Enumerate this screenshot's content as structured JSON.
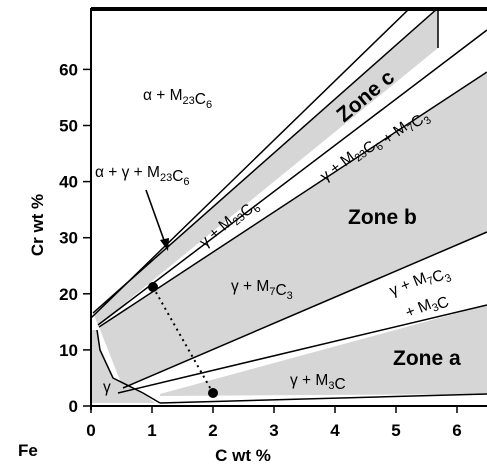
{
  "axes": {
    "xlabel": "C wt %",
    "ylabel": "Cr wt %",
    "origin_label": "Fe",
    "xticks": [
      "0",
      "1",
      "2",
      "3",
      "4",
      "5",
      "6"
    ],
    "yticks": [
      "0",
      "10",
      "20",
      "30",
      "40",
      "50",
      "60"
    ]
  },
  "zones": {
    "a": "Zone a",
    "b": "Zone b",
    "c": "Zone c"
  },
  "phase_labels": {
    "alpha_m23c6": "α + M23C6",
    "alpha_gamma_m23c6": "α + γ + M23C6",
    "gamma_m23c6": "γ + M23C6",
    "gamma_m23c6_m7c3": "γ + M23C6 + M7C3",
    "gamma_m7c3_left": "γ + M7C3",
    "gamma_m7c3_m3c_line1": "γ + M7C3",
    "gamma_m7c3_m3c_line2": "+ M3C",
    "gamma_m3c": "γ + M3C",
    "gamma": "γ"
  },
  "colors": {
    "shaded_region": "#d6d6d6",
    "line": "#000000",
    "background": "#ffffff"
  }
}
